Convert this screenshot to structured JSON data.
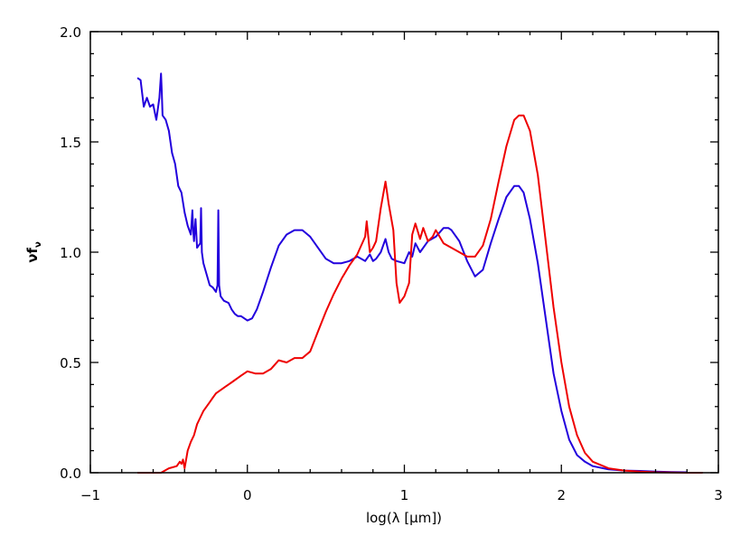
{
  "chart_data": {
    "type": "line",
    "title": "",
    "xlabel": "log(λ [μm])",
    "ylabel": "νf",
    "ylabel_subscript": "ν",
    "xlim": [
      -1,
      3
    ],
    "ylim": [
      0,
      2
    ],
    "xticks": [
      -1,
      0,
      1,
      2,
      3
    ],
    "xtick_labels": [
      "−1",
      "0",
      "1",
      "2",
      "3"
    ],
    "yticks": [
      0,
      0.5,
      1,
      1.5,
      2
    ],
    "ytick_labels": [
      "0.0",
      "0.5",
      "1.0",
      "1.5",
      "2.0"
    ],
    "grid": false,
    "legend": "none",
    "series": [
      {
        "color": "#2200dd",
        "x": [
          -0.7,
          -0.68,
          -0.66,
          -0.64,
          -0.62,
          -0.6,
          -0.58,
          -0.56,
          -0.55,
          -0.545,
          -0.54,
          -0.52,
          -0.5,
          -0.48,
          -0.46,
          -0.44,
          -0.42,
          -0.4,
          -0.38,
          -0.36,
          -0.35,
          -0.345,
          -0.34,
          -0.33,
          -0.32,
          -0.3,
          -0.295,
          -0.29,
          -0.28,
          -0.26,
          -0.24,
          -0.22,
          -0.2,
          -0.19,
          -0.185,
          -0.18,
          -0.17,
          -0.15,
          -0.12,
          -0.1,
          -0.08,
          -0.06,
          -0.04,
          -0.02,
          0.0,
          0.03,
          0.06,
          0.1,
          0.15,
          0.2,
          0.25,
          0.3,
          0.35,
          0.4,
          0.45,
          0.5,
          0.55,
          0.6,
          0.65,
          0.7,
          0.75,
          0.78,
          0.8,
          0.82,
          0.85,
          0.88,
          0.9,
          0.92,
          0.95,
          1.0,
          1.03,
          1.05,
          1.07,
          1.1,
          1.15,
          1.2,
          1.25,
          1.28,
          1.3,
          1.35,
          1.4,
          1.45,
          1.5,
          1.55,
          1.6,
          1.65,
          1.7,
          1.73,
          1.76,
          1.8,
          1.85,
          1.9,
          1.95,
          2.0,
          2.05,
          2.1,
          2.15,
          2.2,
          2.3,
          2.4,
          2.5,
          2.6,
          2.7,
          2.8
        ],
        "y": [
          1.79,
          1.78,
          1.66,
          1.7,
          1.66,
          1.67,
          1.6,
          1.7,
          1.81,
          1.72,
          1.62,
          1.6,
          1.55,
          1.45,
          1.4,
          1.3,
          1.27,
          1.18,
          1.12,
          1.08,
          1.19,
          1.1,
          1.05,
          1.15,
          1.02,
          1.04,
          1.2,
          1.0,
          0.95,
          0.9,
          0.85,
          0.84,
          0.82,
          0.85,
          1.19,
          0.85,
          0.8,
          0.78,
          0.77,
          0.74,
          0.72,
          0.71,
          0.71,
          0.7,
          0.69,
          0.7,
          0.74,
          0.82,
          0.93,
          1.03,
          1.08,
          1.1,
          1.1,
          1.07,
          1.02,
          0.97,
          0.95,
          0.95,
          0.96,
          0.98,
          0.96,
          0.99,
          0.96,
          0.97,
          1.0,
          1.06,
          1.0,
          0.97,
          0.96,
          0.95,
          1.0,
          0.98,
          1.04,
          1.0,
          1.05,
          1.07,
          1.11,
          1.11,
          1.1,
          1.05,
          0.96,
          0.89,
          0.92,
          1.04,
          1.15,
          1.25,
          1.3,
          1.3,
          1.27,
          1.15,
          0.95,
          0.7,
          0.45,
          0.28,
          0.15,
          0.08,
          0.05,
          0.03,
          0.015,
          0.01,
          0.008,
          0.005,
          0.003,
          0.002
        ]
      },
      {
        "color": "#ee0000",
        "x": [
          -0.7,
          -0.65,
          -0.6,
          -0.55,
          -0.5,
          -0.45,
          -0.43,
          -0.42,
          -0.41,
          -0.4,
          -0.38,
          -0.36,
          -0.34,
          -0.32,
          -0.3,
          -0.28,
          -0.26,
          -0.24,
          -0.22,
          -0.2,
          -0.18,
          -0.16,
          -0.14,
          -0.12,
          -0.1,
          -0.08,
          -0.06,
          -0.04,
          -0.02,
          0.0,
          0.05,
          0.1,
          0.15,
          0.2,
          0.25,
          0.3,
          0.35,
          0.4,
          0.45,
          0.5,
          0.55,
          0.6,
          0.65,
          0.7,
          0.75,
          0.76,
          0.78,
          0.8,
          0.82,
          0.85,
          0.88,
          0.9,
          0.93,
          0.95,
          0.97,
          1.0,
          1.03,
          1.05,
          1.07,
          1.1,
          1.12,
          1.15,
          1.18,
          1.2,
          1.25,
          1.3,
          1.35,
          1.4,
          1.45,
          1.5,
          1.55,
          1.6,
          1.65,
          1.7,
          1.73,
          1.76,
          1.8,
          1.85,
          1.9,
          1.95,
          2.0,
          2.05,
          2.1,
          2.15,
          2.2,
          2.3,
          2.4,
          2.5,
          2.6,
          2.7,
          2.8,
          2.9
        ],
        "y": [
          0.0,
          0.0,
          0.0,
          0.0,
          0.02,
          0.03,
          0.05,
          0.04,
          0.06,
          0.02,
          0.1,
          0.14,
          0.17,
          0.22,
          0.25,
          0.28,
          0.3,
          0.32,
          0.34,
          0.36,
          0.37,
          0.38,
          0.39,
          0.4,
          0.41,
          0.42,
          0.43,
          0.44,
          0.45,
          0.46,
          0.45,
          0.45,
          0.47,
          0.51,
          0.5,
          0.52,
          0.52,
          0.55,
          0.64,
          0.73,
          0.81,
          0.88,
          0.94,
          0.99,
          1.07,
          1.14,
          1.0,
          1.02,
          1.05,
          1.2,
          1.32,
          1.22,
          1.1,
          0.86,
          0.77,
          0.8,
          0.86,
          1.08,
          1.13,
          1.06,
          1.11,
          1.05,
          1.07,
          1.1,
          1.04,
          1.02,
          1.0,
          0.98,
          0.98,
          1.03,
          1.15,
          1.32,
          1.48,
          1.6,
          1.62,
          1.62,
          1.55,
          1.35,
          1.05,
          0.75,
          0.5,
          0.3,
          0.17,
          0.09,
          0.05,
          0.02,
          0.01,
          0.005,
          0.002,
          0.001,
          0.0,
          0.0
        ]
      }
    ]
  }
}
